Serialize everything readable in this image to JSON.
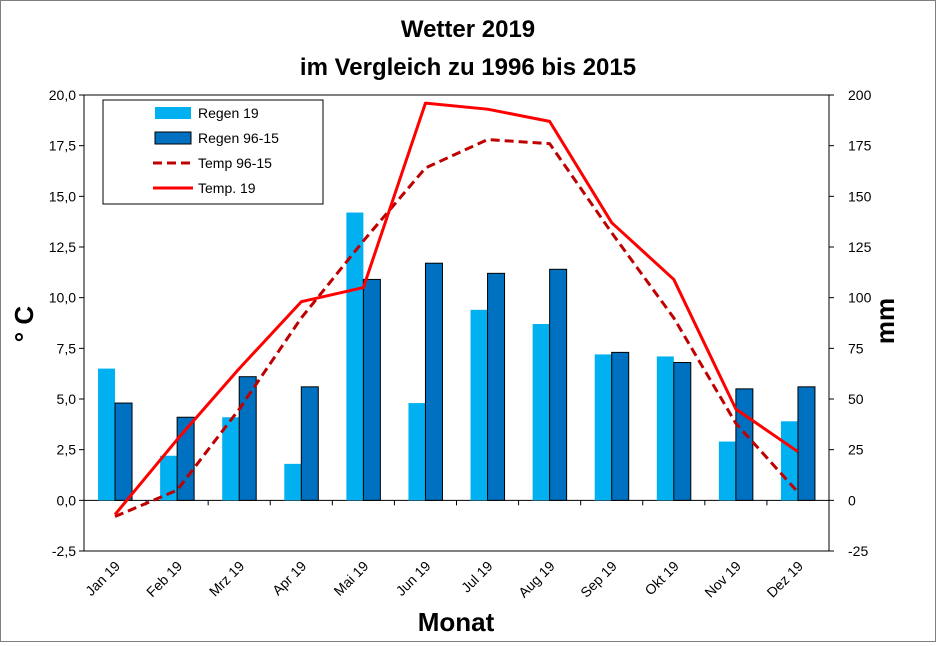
{
  "chart_data": {
    "type": "bar",
    "title": "Wetter  2019",
    "subtitle": "im Vergleich zu 1996 bis 2015",
    "xlabel": "Monat",
    "ylabel_left": "° C",
    "ylabel_right": "mm",
    "ylim_left": [
      -2.5,
      20.0
    ],
    "ylim_right": [
      -25,
      200
    ],
    "yticks_left": [
      "-2,5",
      "0,0",
      "2,5",
      "5,0",
      "7,5",
      "10,0",
      "12,5",
      "15,0",
      "17,5",
      "20,0"
    ],
    "yticks_right": [
      "-25",
      "0",
      "25",
      "50",
      "75",
      "100",
      "125",
      "150",
      "175",
      "200"
    ],
    "categories": [
      "Jan 19",
      "Feb 19",
      "Mrz 19",
      "Apr 19",
      "Mai 19",
      "Jun 19",
      "Jul 19",
      "Aug 19",
      "Sep 19",
      "Okt 19",
      "Nov 19",
      "Dez 19"
    ],
    "bar_series": [
      {
        "name": "Regen 19",
        "axis": "right",
        "color": "#00b0f0",
        "values": [
          65,
          22,
          41,
          18,
          142,
          48,
          94,
          87,
          72,
          71,
          29,
          39
        ]
      },
      {
        "name": "Regen 96-15",
        "axis": "right",
        "color": "#0070c0",
        "values": [
          48,
          41,
          61,
          56,
          109,
          117,
          112,
          114,
          73,
          68,
          55,
          56
        ]
      }
    ],
    "line_series": [
      {
        "name": "Temp 96-15",
        "axis": "left",
        "color": "#c00000",
        "dash": true,
        "values": [
          -0.8,
          0.5,
          4.5,
          9.0,
          12.8,
          16.4,
          17.8,
          17.6,
          13.2,
          9.0,
          3.8,
          0.4
        ]
      },
      {
        "name": "Temp. 19",
        "axis": "left",
        "color": "#ff0000",
        "dash": false,
        "values": [
          -0.7,
          3.0,
          6.5,
          9.8,
          10.5,
          19.6,
          19.3,
          18.7,
          13.7,
          10.9,
          4.5,
          2.4
        ]
      }
    ],
    "legend_order": [
      "Regen 19",
      "Regen 96-15",
      "Temp 96-15",
      "Temp. 19"
    ],
    "legend_position": "top-left",
    "grid": false
  }
}
